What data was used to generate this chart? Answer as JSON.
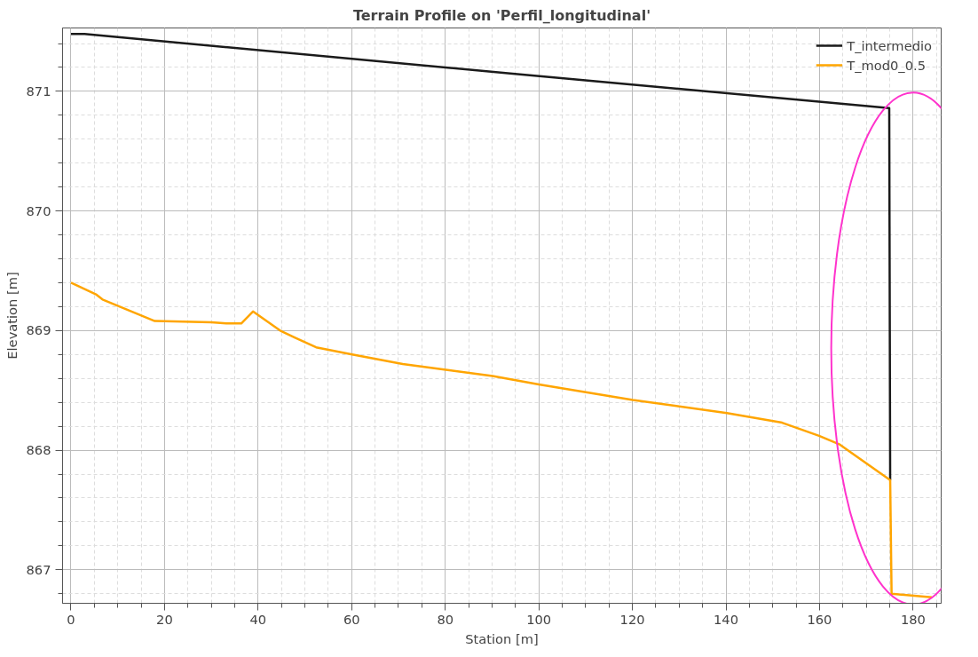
{
  "chart_data": {
    "type": "line",
    "title": "Terrain Profile on 'Perfil_longitudinal'",
    "xlabel": "Station [m]",
    "ylabel": "Elevation [m]",
    "xlim": [
      -1.8,
      186
    ],
    "ylim": [
      866.72,
      871.53
    ],
    "xticks": [
      0,
      20,
      40,
      60,
      80,
      100,
      120,
      140,
      160,
      180
    ],
    "yticks": [
      867,
      868,
      869,
      870,
      871
    ],
    "grid": true,
    "legend": "top right",
    "marker": "none",
    "line_style": "solid",
    "series": [
      {
        "name": "T_intermedio",
        "color": "#1a1a1a",
        "x": [
          0,
          2.9,
          93.9,
          174.9,
          175.1
        ],
        "values": [
          871.48,
          871.48,
          871.15,
          870.86,
          867.75
        ]
      },
      {
        "name": "T_mod0_0.5",
        "color": "#ffa500",
        "x": [
          0,
          5.46,
          6.74,
          17.9,
          30.0,
          33.2,
          36.4,
          38.9,
          44.7,
          47.9,
          52.4,
          60.1,
          70.9,
          80.5,
          90.1,
          100.0,
          120.1,
          140.2,
          152.0,
          159.9,
          164.2,
          175.1,
          175.4,
          184.0
        ],
        "values": [
          869.4,
          869.3,
          869.26,
          869.08,
          869.07,
          869.06,
          869.06,
          869.16,
          869.0,
          868.94,
          868.86,
          868.8,
          868.72,
          868.67,
          868.62,
          868.55,
          868.42,
          868.31,
          868.23,
          868.12,
          868.05,
          867.75,
          866.8,
          866.77
        ]
      }
    ]
  }
}
